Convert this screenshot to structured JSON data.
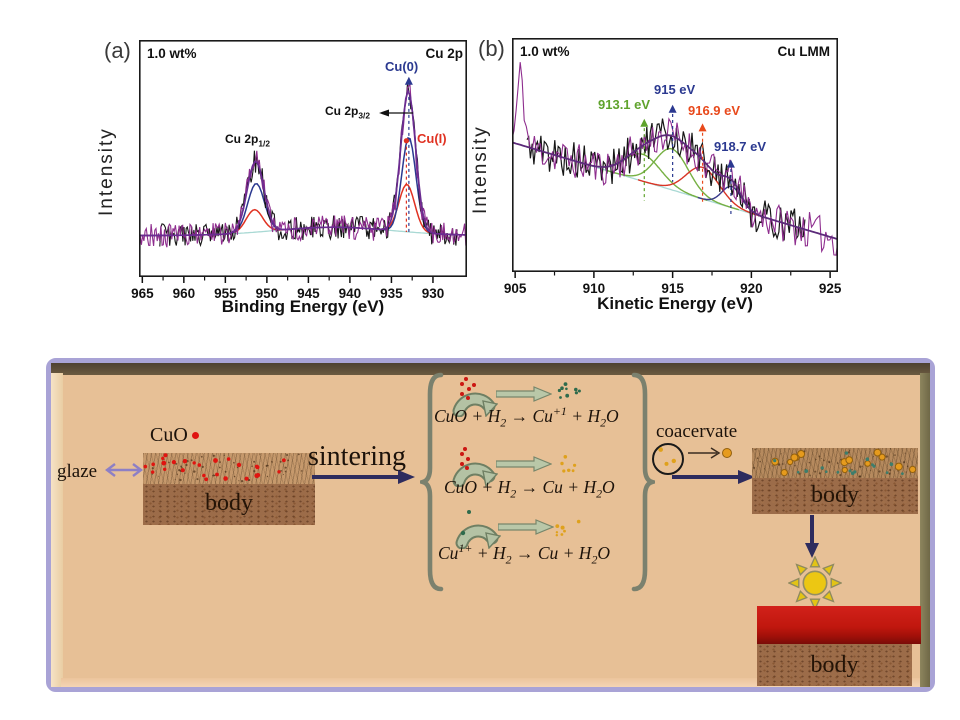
{
  "chart_data": [
    {
      "type": "line",
      "panel_tag": "(a)",
      "inset_label": "1.0 wt%",
      "corner_label": "Cu 2p",
      "xlabel": "Binding Energy (eV)",
      "ylabel": "Intensity",
      "x_ticks": [
        965,
        960,
        955,
        950,
        945,
        940,
        935,
        930
      ],
      "x_view": [
        965.4,
        925.9
      ],
      "x_axis_reversed": true,
      "y_ticks": [],
      "grid": false,
      "baseline": {
        "y0": 0.175,
        "bump": {
          "c": 942,
          "s": 7,
          "a": 0.035
        }
      },
      "peaks_eV": {
        "Cu 2p1/2": 951.3,
        "Cu 2p3/2": 932.9
      },
      "curves": [
        {
          "name": "shirley-baseline",
          "color": "#a9d9d4",
          "w": 1.3,
          "parts": []
        },
        {
          "name": "Cu(I)-component",
          "color": "#e03222",
          "w": 1.5,
          "parts": [
            {
              "c": 951.5,
              "s": 1.0,
              "a": 0.095
            },
            {
              "c": 933.15,
              "s": 0.95,
              "a": 0.2
            }
          ]
        },
        {
          "name": "Cu(0)-component",
          "color": "#2b3990",
          "w": 1.5,
          "parts": [
            {
              "c": 951.3,
              "s": 1.0,
              "a": 0.205
            },
            {
              "c": 932.9,
              "s": 0.85,
              "a": 0.4
            }
          ]
        },
        {
          "name": "measured-data-black",
          "color": "#161616",
          "w": 1.1,
          "noise": 0.05,
          "seed": 3,
          "range": [
            962.9,
            927.1
          ],
          "parts": [
            {
              "c": 951.5,
              "s": 1.0,
              "a": 0.095
            },
            {
              "c": 933.15,
              "s": 0.95,
              "a": 0.2
            },
            {
              "c": 951.3,
              "s": 1.0,
              "a": 0.205
            },
            {
              "c": 932.9,
              "s": 0.85,
              "a": 0.4
            }
          ]
        },
        {
          "name": "raw-data-purple",
          "color": "#8e2d8e",
          "w": 1.1,
          "noise": 0.05,
          "seed": 7,
          "parts": [
            {
              "c": 951.5,
              "s": 1.0,
              "a": 0.095
            },
            {
              "c": 933.15,
              "s": 0.95,
              "a": 0.2
            },
            {
              "c": 951.3,
              "s": 1.0,
              "a": 0.205
            },
            {
              "c": 932.9,
              "s": 0.85,
              "a": 0.4
            }
          ]
        },
        {
          "name": "fit-envelope",
          "color": "#6a2c91",
          "w": 1.7,
          "parts": [
            {
              "c": 951.5,
              "s": 1.0,
              "a": 0.095
            },
            {
              "c": 933.15,
              "s": 0.95,
              "a": 0.2
            },
            {
              "c": 951.3,
              "s": 1.0,
              "a": 0.205
            },
            {
              "c": 932.9,
              "s": 0.85,
              "a": 0.4
            }
          ]
        }
      ],
      "markers": [
        {
          "x": 932.9,
          "color": "#2b3990",
          "tri": 0.845,
          "dash": [
            0.76,
            0.19
          ]
        },
        {
          "x": 933.2,
          "color": "#e03222",
          "dot": 0.575,
          "dash": [
            0.55,
            0.19
          ]
        }
      ],
      "annotations": {
        "cu0": {
          "label": "Cu(0)"
        },
        "cui": {
          "label": "Cu(I)"
        },
        "p32": {
          "main": "Cu 2p",
          "sub": "3/2"
        },
        "p12": {
          "main": "Cu 2p",
          "sub": "1/2"
        }
      }
    },
    {
      "type": "line",
      "panel_tag": "(b)",
      "inset_label": "1.0 wt%",
      "corner_label": "Cu LMM",
      "xlabel": "Kinetic Energy (eV)",
      "ylabel": "Intensity",
      "x_ticks": [
        905,
        910,
        915,
        920,
        925
      ],
      "x_view": [
        904.8,
        925.5
      ],
      "y_ticks": [],
      "grid": false,
      "baseline": {
        "y0": 0.55,
        "k": -0.02,
        "x0": 905
      },
      "component_peaks_eV": [
        913.1,
        915,
        916.9,
        918.7
      ],
      "peak_labels": [
        "913.1 eV",
        "915 eV",
        "916.9 eV",
        "918.7 eV"
      ],
      "curves": [
        {
          "name": "baseline",
          "color": "#a9d9d4",
          "w": 1.3,
          "parts": []
        },
        {
          "name": "green-component-913.1",
          "color": "#76b043",
          "w": 1.4,
          "parts": [
            {
              "c": 913.1,
              "s": 1.15,
              "a": 0.115
            }
          ],
          "range": [
            909.4,
            917.2
          ]
        },
        {
          "name": "green-component-915",
          "color": "#76b043",
          "w": 1.4,
          "parts": [
            {
              "c": 914.95,
              "s": 1.05,
              "a": 0.175
            }
          ],
          "range": [
            910.8,
            919.2
          ]
        },
        {
          "name": "red-component-916.9",
          "color": "#d93425",
          "w": 1.4,
          "parts": [
            {
              "c": 916.9,
              "s": 1.05,
              "a": 0.135
            }
          ],
          "range": [
            912.8,
            920.8
          ]
        },
        {
          "name": "navy-component-918.7",
          "color": "#3a3a8c",
          "w": 1.4,
          "parts": [
            {
              "c": 918.75,
              "s": 0.62,
              "a": 0.09
            }
          ],
          "range": [
            916.6,
            921.2
          ]
        },
        {
          "name": "measured-data-black",
          "color": "#161616",
          "w": 1.2,
          "noise": 0.08,
          "seed": 5,
          "range": [
            905.75,
            923.4
          ],
          "parts": [
            {
              "c": 913.1,
              "s": 1.15,
              "a": 0.115
            },
            {
              "c": 914.95,
              "s": 1.05,
              "a": 0.175
            },
            {
              "c": 916.9,
              "s": 1.05,
              "a": 0.135
            },
            {
              "c": 918.75,
              "s": 0.62,
              "a": 0.09
            }
          ]
        },
        {
          "name": "raw-data-purple",
          "color": "#8e2d8e",
          "w": 1.1,
          "noise": 0.08,
          "seed": 11,
          "parts": [
            {
              "c": 913.1,
              "s": 1.15,
              "a": 0.115
            },
            {
              "c": 914.95,
              "s": 1.05,
              "a": 0.175
            },
            {
              "c": 916.9,
              "s": 1.05,
              "a": 0.135
            },
            {
              "c": 918.75,
              "s": 0.62,
              "a": 0.09
            },
            {
              "c": 905.35,
              "s": 0.22,
              "a": 0.3
            }
          ]
        },
        {
          "name": "fit-envelope",
          "color": "#5c2a7a",
          "w": 1.8,
          "parts": [
            {
              "c": 913.1,
              "s": 1.15,
              "a": 0.115
            },
            {
              "c": 914.95,
              "s": 1.05,
              "a": 0.175
            },
            {
              "c": 916.9,
              "s": 1.05,
              "a": 0.135
            },
            {
              "c": 918.75,
              "s": 0.62,
              "a": 0.09
            }
          ]
        }
      ],
      "markers": [
        {
          "x": 913.2,
          "color": "#5fa32c",
          "tri": 0.655,
          "dash": [
            0.615,
            0.305
          ]
        },
        {
          "x": 915.0,
          "color": "#2b3990",
          "tri": 0.715,
          "dash": [
            0.675,
            0.385
          ]
        },
        {
          "x": 916.9,
          "color": "#e8491c",
          "tri": 0.635,
          "dash": [
            0.595,
            0.29
          ]
        },
        {
          "x": 918.7,
          "color": "#2b3990",
          "tri": 0.48,
          "dash": [
            0.44,
            0.235
          ]
        }
      ]
    }
  ],
  "diagram": {
    "labels": {
      "cuo": "CuO",
      "glaze": "glaze",
      "sintering": "sintering",
      "coacervate": "coacervate",
      "body1": "body",
      "body2": "body",
      "body3": "body"
    },
    "equations": [
      [
        {
          "t": "CuO + H"
        },
        {
          "sub": "2"
        },
        {
          "t": " → Cu"
        },
        {
          "sup": "+1"
        },
        {
          "t": " + H"
        },
        {
          "sub": "2"
        },
        {
          "t": "O"
        }
      ],
      [
        {
          "t": "CuO + H"
        },
        {
          "sub": "2"
        },
        {
          "t": " → Cu + H"
        },
        {
          "sub": "2"
        },
        {
          "t": "O"
        }
      ],
      [
        {
          "t": "Cu"
        },
        {
          "sup": "1+"
        },
        {
          "t": " + H"
        },
        {
          "sub": "2"
        },
        {
          "t": " → Cu + H"
        },
        {
          "sub": "2"
        },
        {
          "t": "O"
        }
      ]
    ],
    "dot_sets": {
      "body1-glaze": [
        {
          "count": 60,
          "color": "rgba(55,32,12,0.6)",
          "rmin": 0.5,
          "rmax": 1.2,
          "seed": 21
        },
        {
          "count": 26,
          "color": "#e01410",
          "rmin": 1.7,
          "rmax": 2.5,
          "seed": 22
        }
      ],
      "body2-glaze": [
        {
          "count": 55,
          "color": "rgba(55,32,12,0.55)",
          "rmin": 0.5,
          "rmax": 1.2,
          "seed": 31
        },
        {
          "count": 14,
          "color": "#e69b1d",
          "rmin": 2.6,
          "rmax": 3.6,
          "ring": "#93600e",
          "seed": 32
        },
        {
          "count": 16,
          "color": "#3e7d6b",
          "rmin": 1.3,
          "rmax": 1.9,
          "seed": 33
        }
      ],
      "cu1-products": [
        {
          "count": 9,
          "color": "#2f6b4c",
          "rmin": 1.2,
          "rmax": 2.0,
          "seed": 41
        }
      ],
      "cu-products-2": [
        {
          "count": 7,
          "color": "#dfa11c",
          "rmin": 1.2,
          "rmax": 2.0,
          "seed": 42
        }
      ],
      "cu-products-3": [
        {
          "count": 7,
          "color": "#dfa11c",
          "rmin": 1.2,
          "rmax": 2.0,
          "seed": 43
        }
      ],
      "coacervate-contents": [
        {
          "count": 3,
          "color": "#dfa11c",
          "rmin": 1.6,
          "rmax": 2.4,
          "seed": 44
        }
      ]
    },
    "colors": {
      "panel_bg": "#e7c096",
      "frame_border": "#a9a3d6",
      "arrow_navy": "#2e2c5e",
      "glaze_arrow": "#8d7fc5",
      "brace": "#7b816e",
      "reaction_arrow_fill": "#b9c7a8",
      "reaction_arrow_stroke": "#77866b",
      "cuo_dot": "#e01410",
      "red_glaze": "#c41408",
      "sun": "#e9c614"
    }
  }
}
